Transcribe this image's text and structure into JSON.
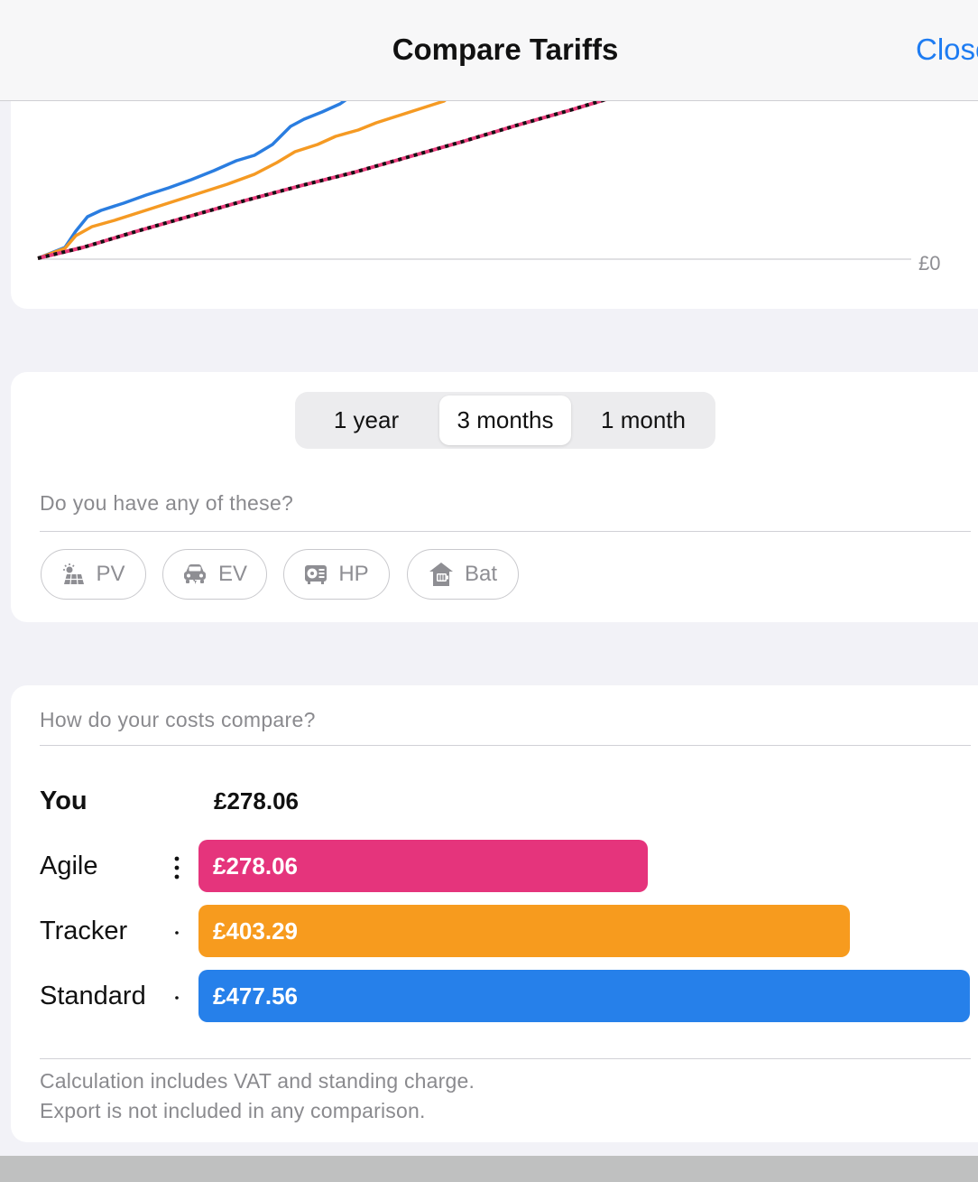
{
  "header": {
    "title": "Compare Tariffs",
    "close_label": "Close"
  },
  "chart": {
    "zero_label": "£0",
    "colors": {
      "standard": "#2a7de0",
      "tracker": "#f59a23",
      "agile": "#e83a7a",
      "you": "#111111"
    }
  },
  "period": {
    "options": [
      "1 year",
      "3 months",
      "1 month"
    ],
    "selected": "3 months"
  },
  "devices": {
    "prompt": "Do you have any of these?",
    "chips": [
      {
        "label": "PV",
        "icon": "solar-panel-icon"
      },
      {
        "label": "EV",
        "icon": "car-icon"
      },
      {
        "label": "HP",
        "icon": "heat-pump-icon"
      },
      {
        "label": "Bat",
        "icon": "battery-house-icon"
      }
    ]
  },
  "costs": {
    "prompt": "How do your costs compare?",
    "you": {
      "label": "You",
      "value": "£278.06"
    },
    "tariffs": [
      {
        "label": "Agile",
        "value": "£278.06",
        "amount": 278.06,
        "color": "#e5347c"
      },
      {
        "label": "Tracker",
        "value": "£403.29",
        "amount": 403.29,
        "color": "#f79b1e"
      },
      {
        "label": "Standard",
        "value": "£477.56",
        "amount": 477.56,
        "color": "#2680ea"
      }
    ],
    "footnote_1": "Calculation includes VAT and standing charge.",
    "footnote_2": "Export is not included in any comparison."
  }
}
